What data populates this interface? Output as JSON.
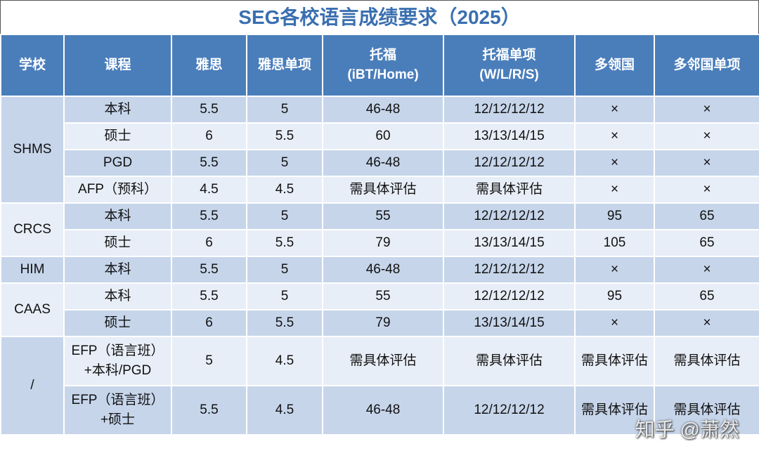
{
  "title": "SEG各校语言成绩要求（2025）",
  "table": {
    "header": [
      "学校",
      "课程",
      "雅思",
      "雅思单项",
      "托福\n(iBT/Home)",
      "托福单项\n(W/L/R/S)",
      "多领国",
      "多邻国单项"
    ],
    "groups": [
      {
        "school": "SHMS",
        "rows": [
          [
            "本科",
            "5.5",
            "5",
            "46-48",
            "12/12/12/12",
            "×",
            "×"
          ],
          [
            "硕士",
            "6",
            "5.5",
            "60",
            "13/13/14/15",
            "×",
            "×"
          ],
          [
            "PGD",
            "5.5",
            "5",
            "46-48",
            "12/12/12/12",
            "×",
            "×"
          ],
          [
            "AFP（预科）",
            "4.5",
            "4.5",
            "需具体评估",
            "需具体评估",
            "×",
            "×"
          ]
        ]
      },
      {
        "school": "CRCS",
        "rows": [
          [
            "本科",
            "5.5",
            "5",
            "55",
            "12/12/12/12",
            "95",
            "65"
          ],
          [
            "硕士",
            "6",
            "5.5",
            "79",
            "13/13/14/15",
            "105",
            "65"
          ]
        ]
      },
      {
        "school": "HIM",
        "rows": [
          [
            "本科",
            "5.5",
            "5",
            "46-48",
            "12/12/12/12",
            "×",
            "×"
          ]
        ]
      },
      {
        "school": "CAAS",
        "rows": [
          [
            "本科",
            "5.5",
            "5",
            "55",
            "12/12/12/12",
            "95",
            "65"
          ],
          [
            "硕士",
            "6",
            "5.5",
            "79",
            "13/13/14/15",
            "×",
            "×"
          ]
        ]
      },
      {
        "school": "/",
        "rows": [
          [
            "EFP（语言班）\n+本科/PGD",
            "5",
            "4.5",
            "需具体评估",
            "需具体评估",
            "需具体评估",
            "需具体评估"
          ],
          [
            "EFP（语言班）\n+硕士",
            "5.5",
            "4.5",
            "46-48",
            "12/12/12/12",
            "需具体评估",
            "需具体评估"
          ]
        ]
      }
    ]
  },
  "watermark": "知乎 @萧然"
}
